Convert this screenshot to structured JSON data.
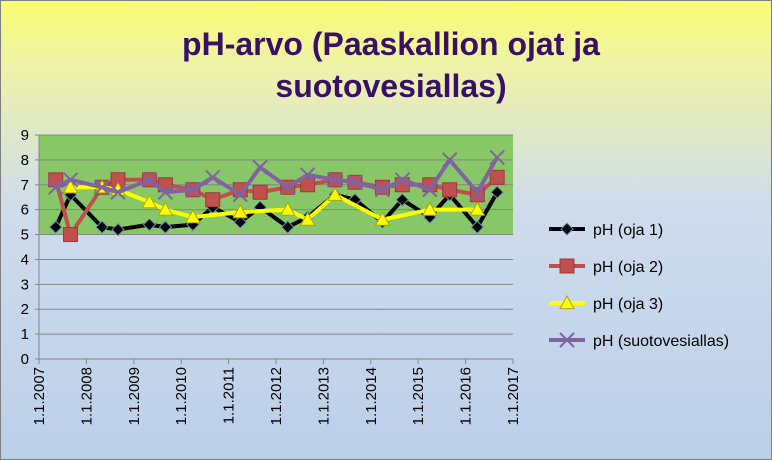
{
  "chart_data": {
    "type": "line",
    "title": "pH-arvo (Paaskallion ojat ja suotovesiallas)",
    "xlabel": "",
    "ylabel": "",
    "ylim": [
      0,
      9
    ],
    "yticks": [
      "0",
      "1",
      "2",
      "3",
      "4",
      "5",
      "6",
      "7",
      "8",
      "9"
    ],
    "xlim": [
      "2007-01-01",
      "2017-01-01"
    ],
    "xticks": [
      "1.1.2007",
      "1.1.2008",
      "1.1.2009",
      "1.1.2010",
      "1.1.2011",
      "1.1.2012",
      "1.1.2013",
      "1.1.2014",
      "1.1.2015",
      "1.1.2016",
      "1.1.2017"
    ],
    "grid": true,
    "legend_position": "right",
    "background_band": {
      "from": 5,
      "to": 9,
      "color": "#7fc45a"
    },
    "series": [
      {
        "name": "pH (oja 1)",
        "color": "#000000",
        "marker": "diamond",
        "x": [
          "2007-05-10",
          "2007-09-01",
          "2008-05-01",
          "2008-09-01",
          "2009-05-01",
          "2009-09-01",
          "2010-04-01",
          "2010-09-01",
          "2011-04-01",
          "2011-09-01",
          "2012-04-01",
          "2012-09-01",
          "2013-04-01",
          "2013-09-01",
          "2014-04-01",
          "2014-09-01",
          "2015-04-01",
          "2015-09-01",
          "2016-04-01",
          "2016-09-01"
        ],
        "y": [
          5.3,
          6.6,
          5.3,
          5.2,
          5.4,
          5.3,
          5.4,
          6.1,
          5.5,
          6.1,
          5.3,
          5.7,
          6.6,
          6.4,
          5.5,
          6.4,
          5.7,
          6.6,
          5.3,
          6.7
        ]
      },
      {
        "name": "pH (oja 2)",
        "color": "#c0504d",
        "marker": "square",
        "x": [
          "2007-05-10",
          "2007-09-01",
          "2008-05-01",
          "2008-09-01",
          "2009-05-01",
          "2009-09-01",
          "2010-04-01",
          "2010-09-01",
          "2011-04-01",
          "2011-09-01",
          "2012-04-01",
          "2012-09-01",
          "2013-04-01",
          "2013-09-01",
          "2014-04-01",
          "2014-09-01",
          "2015-04-01",
          "2015-09-01",
          "2016-04-01",
          "2016-09-01"
        ],
        "y": [
          7.2,
          5.0,
          6.9,
          7.2,
          7.2,
          7.0,
          6.8,
          6.4,
          6.8,
          6.7,
          6.9,
          7.0,
          7.2,
          7.1,
          6.9,
          7.0,
          7.0,
          6.8,
          6.6,
          7.3
        ]
      },
      {
        "name": "pH (oja 3)",
        "color": "#ffff00",
        "marker": "triangle",
        "x": [
          "2007-09-01",
          "2008-05-01",
          "2008-09-01",
          "2009-05-01",
          "2009-09-01",
          "2010-04-01",
          "2011-04-01",
          "2012-04-01",
          "2012-09-01",
          "2013-04-01",
          "2014-04-01",
          "2015-04-01",
          "2016-04-01"
        ],
        "y": [
          6.9,
          6.9,
          6.8,
          6.3,
          6.0,
          5.7,
          5.9,
          6.0,
          5.6,
          6.6,
          5.6,
          6.0,
          6.0
        ]
      },
      {
        "name": "pH (suotovesiallas)",
        "color": "#8064a2",
        "marker": "x",
        "x": [
          "2007-05-10",
          "2007-09-01",
          "2008-05-01",
          "2008-09-01",
          "2009-05-01",
          "2009-09-01",
          "2010-04-01",
          "2010-09-01",
          "2011-04-01",
          "2011-09-01",
          "2012-04-01",
          "2012-09-01",
          "2013-04-01",
          "2013-09-01",
          "2014-04-01",
          "2014-09-01",
          "2015-04-01",
          "2015-09-01",
          "2016-04-01",
          "2016-09-01"
        ],
        "y": [
          6.9,
          7.2,
          6.9,
          6.7,
          7.2,
          6.7,
          6.8,
          7.3,
          6.6,
          7.7,
          6.9,
          7.4,
          7.2,
          7.1,
          6.8,
          7.2,
          6.8,
          8.0,
          6.7,
          8.1
        ]
      }
    ]
  }
}
